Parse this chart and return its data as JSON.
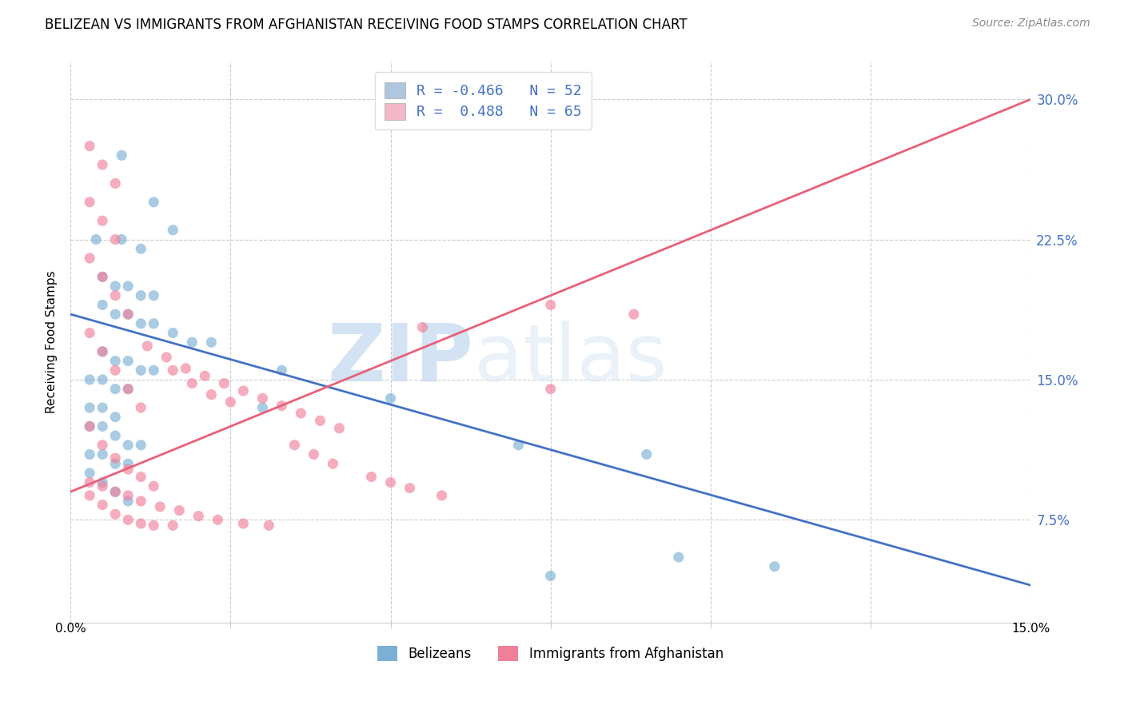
{
  "title": "BELIZEAN VS IMMIGRANTS FROM AFGHANISTAN RECEIVING FOOD STAMPS CORRELATION CHART",
  "source": "Source: ZipAtlas.com",
  "ylabel": "Receiving Food Stamps",
  "yticks": [
    "7.5%",
    "15.0%",
    "22.5%",
    "30.0%"
  ],
  "ytick_vals": [
    0.075,
    0.15,
    0.225,
    0.3
  ],
  "xlim": [
    0.0,
    0.15
  ],
  "ylim": [
    0.02,
    0.32
  ],
  "legend_label1": "R = -0.466   N = 52",
  "legend_label2": "R =  0.488   N = 65",
  "legend_color1": "#aec6e0",
  "legend_color2": "#f4b8c8",
  "scatter_blue_x": [
    0.008,
    0.013,
    0.016,
    0.004,
    0.008,
    0.011,
    0.005,
    0.007,
    0.009,
    0.011,
    0.013,
    0.005,
    0.007,
    0.009,
    0.011,
    0.013,
    0.016,
    0.019,
    0.022,
    0.005,
    0.007,
    0.009,
    0.011,
    0.013,
    0.003,
    0.005,
    0.007,
    0.009,
    0.003,
    0.005,
    0.007,
    0.003,
    0.005,
    0.007,
    0.009,
    0.011,
    0.003,
    0.005,
    0.007,
    0.009,
    0.003,
    0.005,
    0.033,
    0.007,
    0.009,
    0.07,
    0.09,
    0.11,
    0.03,
    0.05,
    0.075,
    0.095
  ],
  "scatter_blue_y": [
    0.27,
    0.245,
    0.23,
    0.225,
    0.225,
    0.22,
    0.205,
    0.2,
    0.2,
    0.195,
    0.195,
    0.19,
    0.185,
    0.185,
    0.18,
    0.18,
    0.175,
    0.17,
    0.17,
    0.165,
    0.16,
    0.16,
    0.155,
    0.155,
    0.15,
    0.15,
    0.145,
    0.145,
    0.135,
    0.135,
    0.13,
    0.125,
    0.125,
    0.12,
    0.115,
    0.115,
    0.11,
    0.11,
    0.105,
    0.105,
    0.1,
    0.095,
    0.155,
    0.09,
    0.085,
    0.115,
    0.11,
    0.05,
    0.135,
    0.14,
    0.045,
    0.055
  ],
  "scatter_pink_x": [
    0.003,
    0.005,
    0.007,
    0.003,
    0.005,
    0.007,
    0.003,
    0.005,
    0.007,
    0.009,
    0.003,
    0.005,
    0.007,
    0.009,
    0.011,
    0.003,
    0.005,
    0.007,
    0.009,
    0.011,
    0.013,
    0.003,
    0.005,
    0.007,
    0.009,
    0.011,
    0.013,
    0.016,
    0.003,
    0.005,
    0.007,
    0.009,
    0.011,
    0.014,
    0.017,
    0.02,
    0.023,
    0.027,
    0.031,
    0.016,
    0.019,
    0.022,
    0.025,
    0.012,
    0.015,
    0.018,
    0.021,
    0.024,
    0.027,
    0.03,
    0.033,
    0.036,
    0.039,
    0.042,
    0.055,
    0.075,
    0.035,
    0.038,
    0.041,
    0.047,
    0.05,
    0.053,
    0.058,
    0.088,
    0.075
  ],
  "scatter_pink_y": [
    0.275,
    0.265,
    0.255,
    0.245,
    0.235,
    0.225,
    0.215,
    0.205,
    0.195,
    0.185,
    0.175,
    0.165,
    0.155,
    0.145,
    0.135,
    0.125,
    0.115,
    0.108,
    0.102,
    0.098,
    0.093,
    0.088,
    0.083,
    0.078,
    0.075,
    0.073,
    0.072,
    0.072,
    0.095,
    0.093,
    0.09,
    0.088,
    0.085,
    0.082,
    0.08,
    0.077,
    0.075,
    0.073,
    0.072,
    0.155,
    0.148,
    0.142,
    0.138,
    0.168,
    0.162,
    0.156,
    0.152,
    0.148,
    0.144,
    0.14,
    0.136,
    0.132,
    0.128,
    0.124,
    0.178,
    0.19,
    0.115,
    0.11,
    0.105,
    0.098,
    0.095,
    0.092,
    0.088,
    0.185,
    0.145
  ],
  "blue_line_x": [
    0.0,
    0.15
  ],
  "blue_line_y": [
    0.185,
    0.04
  ],
  "pink_line_x": [
    0.0,
    0.15
  ],
  "pink_line_y": [
    0.09,
    0.3
  ],
  "dot_color_blue": "#7bafd4",
  "dot_color_pink": "#f08098",
  "line_color_blue": "#4472c4",
  "line_color_pink": "#e8607a",
  "watermark_zip": "ZIP",
  "watermark_atlas": "atlas",
  "footer_label1": "Belizeans",
  "footer_label2": "Immigrants from Afghanistan",
  "title_fontsize": 12,
  "axis_label_fontsize": 11
}
